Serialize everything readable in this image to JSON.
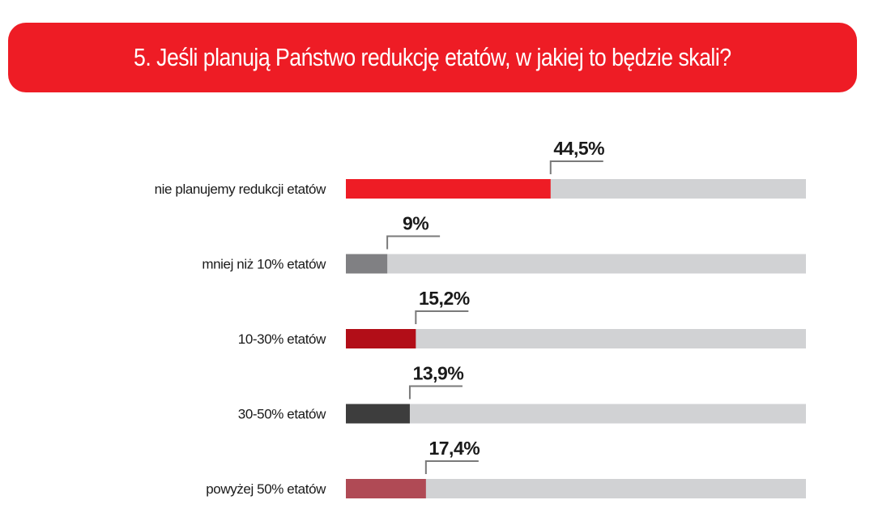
{
  "header": {
    "title": "5. Jeśli planują Państwo redukcję etatów, w jakiej to będzie skali?"
  },
  "chart_data": {
    "type": "bar",
    "orientation": "horizontal",
    "title": "5. Jeśli planują Państwo redukcję etatów, w jakiej to będzie skali?",
    "xlim": [
      0,
      100
    ],
    "unit": "%",
    "categories": [
      "nie planujemy redukcji etatów",
      "mniej niż 10% etatów",
      "10-30% etatów",
      "30-50% etatów",
      "powyżej 50% etatów"
    ],
    "values": [
      44.5,
      9,
      15.2,
      13.9,
      17.4
    ],
    "value_labels": [
      "44,5%",
      "9%",
      "15,2%",
      "13,9%",
      "17,4%"
    ],
    "bar_colors": [
      "#ee1c25",
      "#808083",
      "#b20e18",
      "#3d3d3d",
      "#b04a55"
    ],
    "track_color": "#d1d2d4",
    "grid": false,
    "legend": "none"
  },
  "colors": {
    "header_background": "#ee1c25",
    "header_text": "#ffffff",
    "leader_line": "#7a7a7a"
  }
}
